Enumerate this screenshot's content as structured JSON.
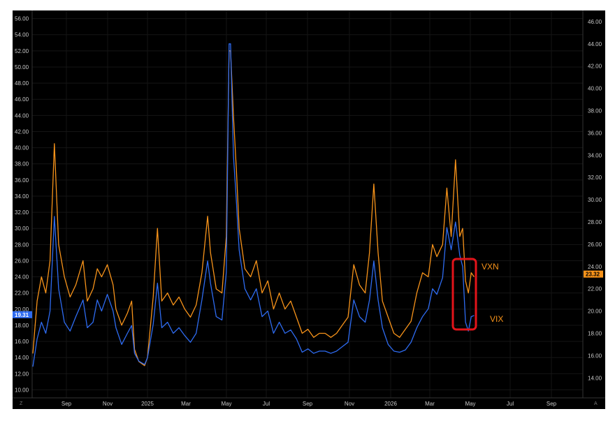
{
  "chart_data": {
    "type": "line",
    "left_axis": {
      "ticks": [
        "10.00",
        "12.00",
        "14.00",
        "16.00",
        "18.00",
        "20.00",
        "22.00",
        "24.00",
        "26.00",
        "28.00",
        "30.00",
        "32.00",
        "34.00",
        "36.00",
        "38.00",
        "40.00",
        "42.00",
        "44.00",
        "46.00",
        "48.00",
        "50.00",
        "52.00",
        "54.00",
        "56.00"
      ],
      "range": [
        9,
        57
      ]
    },
    "right_axis": {
      "ticks": [
        "14.00",
        "16.00",
        "18.00",
        "20.00",
        "22.00",
        "24.00",
        "26.00",
        "28.00",
        "30.00",
        "32.00",
        "34.00",
        "36.00",
        "38.00",
        "40.00",
        "42.00",
        "44.00",
        "46.00"
      ],
      "range": [
        12.2,
        47
      ]
    },
    "x_ticks": [
      "Sep",
      "Nov",
      "2025",
      "Mar",
      "May",
      "Jul",
      "Sep",
      "Nov",
      "2026",
      "Mar",
      "May",
      "Jul",
      "Sep"
    ],
    "series": [
      {
        "name": "VXN",
        "color": "#f7931a",
        "axis": "left",
        "last_value_label": "23.32",
        "points": [
          [
            0,
            14.5
          ],
          [
            1.5,
            21
          ],
          [
            3,
            24
          ],
          [
            4.5,
            22
          ],
          [
            6,
            26
          ],
          [
            7.5,
            40.5
          ],
          [
            9,
            28
          ],
          [
            11,
            24
          ],
          [
            13,
            21.5
          ],
          [
            15,
            23
          ],
          [
            17.5,
            26
          ],
          [
            19,
            21
          ],
          [
            21,
            22.5
          ],
          [
            22.5,
            25
          ],
          [
            24,
            24
          ],
          [
            26,
            25.5
          ],
          [
            28,
            23
          ],
          [
            29,
            20
          ],
          [
            31,
            18
          ],
          [
            33,
            19.5
          ],
          [
            34.5,
            21
          ],
          [
            35.5,
            15
          ],
          [
            37,
            13.5
          ],
          [
            39,
            13
          ],
          [
            40,
            14
          ],
          [
            42,
            21.5
          ],
          [
            43.5,
            30
          ],
          [
            45,
            21
          ],
          [
            47,
            22
          ],
          [
            49,
            20.5
          ],
          [
            51,
            21.5
          ],
          [
            53,
            20
          ],
          [
            55,
            19
          ],
          [
            57,
            20.5
          ],
          [
            59,
            24.5
          ],
          [
            61,
            31.5
          ],
          [
            62,
            27
          ],
          [
            64,
            22.5
          ],
          [
            66,
            22
          ],
          [
            67.5,
            29
          ],
          [
            68.5,
            52
          ],
          [
            69,
            52
          ],
          [
            70,
            44
          ],
          [
            71,
            37.5
          ],
          [
            72,
            30
          ],
          [
            74,
            25
          ],
          [
            76,
            24
          ],
          [
            78,
            26
          ],
          [
            80,
            22
          ],
          [
            82,
            23.5
          ],
          [
            84,
            20
          ],
          [
            86,
            22
          ],
          [
            88,
            20
          ],
          [
            90,
            21
          ],
          [
            92,
            19
          ],
          [
            94,
            17
          ],
          [
            96,
            17.5
          ],
          [
            98,
            16.5
          ],
          [
            100,
            17
          ],
          [
            102,
            17
          ],
          [
            104,
            16.5
          ],
          [
            106,
            17
          ],
          [
            108,
            18
          ],
          [
            110,
            19
          ],
          [
            112,
            25.5
          ],
          [
            114,
            23
          ],
          [
            116,
            22
          ],
          [
            117.5,
            27
          ],
          [
            119,
            35.5
          ],
          [
            120.5,
            27
          ],
          [
            122,
            21
          ],
          [
            124,
            19
          ],
          [
            126,
            17
          ],
          [
            128,
            16.5
          ],
          [
            130,
            17.5
          ],
          [
            132,
            18.5
          ],
          [
            134,
            22
          ],
          [
            136,
            24.5
          ],
          [
            138,
            24
          ],
          [
            139.5,
            28
          ],
          [
            141,
            26.5
          ],
          [
            143,
            28
          ],
          [
            144.5,
            35
          ],
          [
            146,
            29
          ],
          [
            147.5,
            38.5
          ],
          [
            149,
            29
          ],
          [
            150,
            30
          ],
          [
            151,
            23.5
          ],
          [
            152,
            22
          ],
          [
            153,
            24.5
          ],
          [
            154,
            24
          ]
        ]
      },
      {
        "name": "VIX",
        "color": "#2e6bf0",
        "axis": "right",
        "last_value_label": "19.31",
        "points": [
          [
            0,
            15
          ],
          [
            1.5,
            17.5
          ],
          [
            3,
            19
          ],
          [
            4.5,
            18
          ],
          [
            6,
            20
          ],
          [
            7.5,
            28.5
          ],
          [
            9,
            22
          ],
          [
            11,
            19
          ],
          [
            13,
            18.2
          ],
          [
            15,
            19.5
          ],
          [
            17.5,
            21
          ],
          [
            19,
            18.5
          ],
          [
            21,
            19
          ],
          [
            22.5,
            21
          ],
          [
            24,
            20
          ],
          [
            26,
            21.5
          ],
          [
            28,
            20
          ],
          [
            29,
            18.5
          ],
          [
            31,
            17
          ],
          [
            33,
            18
          ],
          [
            34.5,
            18.7
          ],
          [
            35.5,
            16.2
          ],
          [
            37,
            15.5
          ],
          [
            39,
            15.2
          ],
          [
            40,
            15.8
          ],
          [
            42,
            18.8
          ],
          [
            43.5,
            22.5
          ],
          [
            45,
            18.5
          ],
          [
            47,
            19
          ],
          [
            49,
            18
          ],
          [
            51,
            18.5
          ],
          [
            53,
            17.8
          ],
          [
            55,
            17.2
          ],
          [
            57,
            18
          ],
          [
            59,
            21
          ],
          [
            61,
            24.5
          ],
          [
            62,
            22.5
          ],
          [
            64,
            19.5
          ],
          [
            66,
            19.2
          ],
          [
            67.5,
            23.5
          ],
          [
            68.5,
            44
          ],
          [
            69,
            44
          ],
          [
            70,
            34
          ],
          [
            71,
            30
          ],
          [
            72,
            25.5
          ],
          [
            74,
            22
          ],
          [
            76,
            21
          ],
          [
            78,
            22
          ],
          [
            80,
            19.5
          ],
          [
            82,
            20
          ],
          [
            84,
            18
          ],
          [
            86,
            19
          ],
          [
            88,
            18
          ],
          [
            90,
            18.3
          ],
          [
            92,
            17.5
          ],
          [
            94,
            16.3
          ],
          [
            96,
            16.6
          ],
          [
            98,
            16.2
          ],
          [
            100,
            16.4
          ],
          [
            102,
            16.4
          ],
          [
            104,
            16.2
          ],
          [
            106,
            16.4
          ],
          [
            108,
            16.8
          ],
          [
            110,
            17.2
          ],
          [
            112,
            21
          ],
          [
            114,
            19.5
          ],
          [
            116,
            19
          ],
          [
            117.5,
            21
          ],
          [
            119,
            24.5
          ],
          [
            120.5,
            21
          ],
          [
            122,
            18.5
          ],
          [
            124,
            17
          ],
          [
            126,
            16.4
          ],
          [
            128,
            16.3
          ],
          [
            130,
            16.5
          ],
          [
            132,
            17.2
          ],
          [
            134,
            18.5
          ],
          [
            136,
            19.5
          ],
          [
            138,
            20.2
          ],
          [
            139.5,
            22
          ],
          [
            141,
            21.5
          ],
          [
            143,
            23
          ],
          [
            144.5,
            27.5
          ],
          [
            146,
            25.5
          ],
          [
            147.5,
            28
          ],
          [
            149,
            25
          ],
          [
            150,
            24
          ],
          [
            151,
            19
          ],
          [
            152,
            18.2
          ],
          [
            153,
            19.5
          ],
          [
            154,
            19.6
          ]
        ]
      }
    ],
    "annotations": {
      "highlight_box": "red rounded rectangle around the latest values",
      "vxn_label": "VXN",
      "vix_label": "VIX"
    },
    "grid": true,
    "background": "#000000"
  },
  "corner_left": "Z",
  "corner_right": "A"
}
